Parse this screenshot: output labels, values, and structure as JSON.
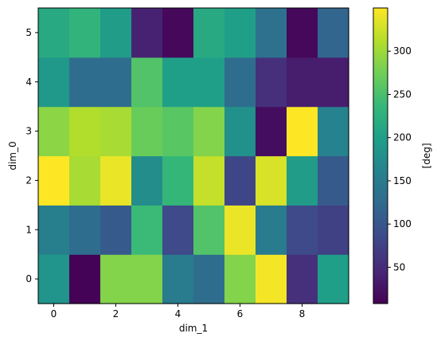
{
  "chart_data": {
    "type": "heatmap",
    "xlabel": "dim_1",
    "ylabel": "dim_0",
    "x_ticks": [
      0,
      2,
      4,
      6,
      8
    ],
    "y_ticks": [
      0,
      1,
      2,
      3,
      4,
      5
    ],
    "x_range": [
      -0.5,
      9.5
    ],
    "y_range": [
      -0.5,
      5.5
    ],
    "colormap": "viridis",
    "colorbar": {
      "label": "[deg]",
      "ticks": [
        50,
        100,
        150,
        200,
        250,
        300
      ],
      "range": [
        8,
        350
      ]
    },
    "rows": [
      {
        "dim_0": 0,
        "values": [
          185,
          10,
          285,
          285,
          150,
          130,
          285,
          345,
          55,
          200
        ]
      },
      {
        "dim_0": 1,
        "values": [
          155,
          130,
          105,
          240,
          85,
          255,
          340,
          150,
          85,
          75
        ]
      },
      {
        "dim_0": 2,
        "values": [
          350,
          305,
          340,
          175,
          235,
          320,
          80,
          330,
          195,
          105
        ]
      },
      {
        "dim_0": 3,
        "values": [
          290,
          310,
          305,
          270,
          260,
          285,
          180,
          20,
          350,
          160
        ]
      },
      {
        "dim_0": 4,
        "values": [
          190,
          130,
          130,
          255,
          200,
          200,
          130,
          55,
          35,
          35
        ]
      },
      {
        "dim_0": 5,
        "values": [
          215,
          230,
          195,
          40,
          15,
          215,
          200,
          135,
          15,
          120
        ]
      }
    ]
  }
}
